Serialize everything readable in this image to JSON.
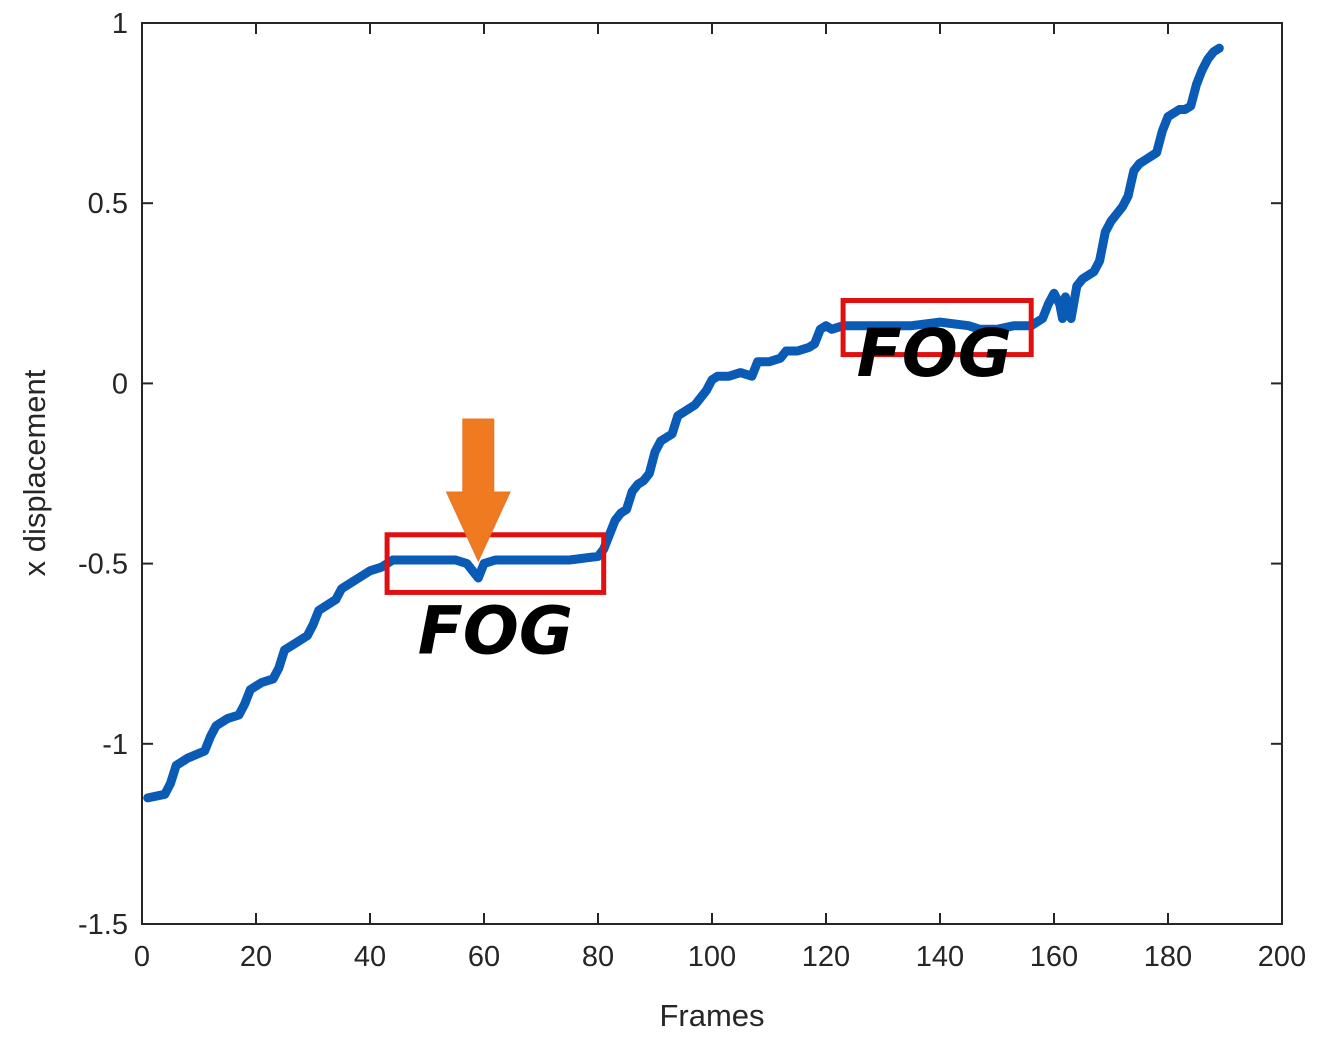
{
  "chart_data": {
    "type": "line",
    "title": "",
    "xlabel": "Frames",
    "ylabel": "x displacement",
    "xlim": [
      0,
      200
    ],
    "ylim": [
      -1.5,
      1
    ],
    "xticks": [
      0,
      20,
      40,
      60,
      80,
      100,
      120,
      140,
      160,
      180,
      200
    ],
    "yticks": [
      -1.5,
      -1,
      -0.5,
      0,
      0.5,
      1
    ],
    "xtick_labels": [
      "0",
      "20",
      "40",
      "60",
      "80",
      "100",
      "120",
      "140",
      "160",
      "180",
      "200"
    ],
    "ytick_labels": [
      "-1.5",
      "-1",
      "-0.5",
      "0",
      "0.5",
      "1"
    ],
    "grid": false,
    "series": [
      {
        "color": "#0a5bb5",
        "x": [
          1,
          4,
          5,
          6,
          8,
          11,
          12,
          13,
          15,
          17,
          18,
          19,
          21,
          23,
          24,
          25,
          27,
          29,
          30,
          31,
          33,
          34,
          35,
          36,
          37,
          38,
          40,
          42,
          44,
          46,
          48,
          50,
          52,
          55,
          57,
          58,
          59,
          60,
          62,
          65,
          70,
          75,
          80,
          81,
          83,
          84,
          85,
          86,
          87,
          88,
          89,
          90,
          91,
          92,
          93,
          94,
          95,
          96,
          97,
          98,
          99,
          100,
          101,
          102,
          103,
          105,
          107,
          108,
          109,
          110,
          112,
          113,
          115,
          117,
          118,
          119,
          120,
          121,
          123,
          125,
          130,
          135,
          140,
          145,
          147,
          150,
          153,
          156,
          157,
          158,
          159,
          160,
          161,
          161.5,
          162,
          163,
          164,
          165,
          166,
          167,
          168,
          169,
          170,
          171,
          172,
          173,
          174,
          175,
          176,
          177,
          178,
          179,
          180,
          181,
          182,
          183,
          184,
          185,
          186,
          187,
          188,
          189
        ],
        "y": [
          -1.15,
          -1.14,
          -1.11,
          -1.06,
          -1.04,
          -1.02,
          -0.98,
          -0.95,
          -0.93,
          -0.92,
          -0.89,
          -0.85,
          -0.83,
          -0.82,
          -0.79,
          -0.74,
          -0.72,
          -0.7,
          -0.67,
          -0.63,
          -0.61,
          -0.6,
          -0.57,
          -0.56,
          -0.55,
          -0.54,
          -0.52,
          -0.51,
          -0.49,
          -0.49,
          -0.49,
          -0.49,
          -0.49,
          -0.49,
          -0.5,
          -0.52,
          -0.54,
          -0.5,
          -0.49,
          -0.49,
          -0.49,
          -0.49,
          -0.48,
          -0.46,
          -0.38,
          -0.36,
          -0.35,
          -0.3,
          -0.28,
          -0.27,
          -0.25,
          -0.19,
          -0.16,
          -0.15,
          -0.14,
          -0.09,
          -0.08,
          -0.07,
          -0.06,
          -0.04,
          -0.02,
          0.01,
          0.02,
          0.02,
          0.02,
          0.03,
          0.02,
          0.06,
          0.06,
          0.06,
          0.07,
          0.09,
          0.09,
          0.1,
          0.11,
          0.15,
          0.16,
          0.15,
          0.16,
          0.16,
          0.16,
          0.16,
          0.17,
          0.16,
          0.15,
          0.15,
          0.16,
          0.16,
          0.17,
          0.18,
          0.22,
          0.25,
          0.22,
          0.18,
          0.24,
          0.18,
          0.27,
          0.29,
          0.3,
          0.31,
          0.34,
          0.42,
          0.45,
          0.47,
          0.49,
          0.52,
          0.59,
          0.61,
          0.62,
          0.63,
          0.64,
          0.7,
          0.74,
          0.75,
          0.76,
          0.76,
          0.77,
          0.83,
          0.87,
          0.9,
          0.92,
          0.93
        ]
      }
    ],
    "annotations": [
      {
        "type": "box",
        "x": [
          43,
          81
        ],
        "y": [
          -0.58,
          -0.42
        ],
        "color": "#e01010",
        "label": "FOG",
        "label_at": [
          62,
          -0.75
        ]
      },
      {
        "type": "box",
        "x": [
          123,
          156
        ],
        "y": [
          0.08,
          0.23
        ],
        "color": "#e01010",
        "label": "FOG",
        "label_at": [
          139,
          0.02
        ]
      },
      {
        "type": "arrow",
        "color": "#f07a20",
        "tip": [
          59,
          -0.49
        ],
        "tail": [
          59,
          -0.1
        ]
      }
    ]
  }
}
